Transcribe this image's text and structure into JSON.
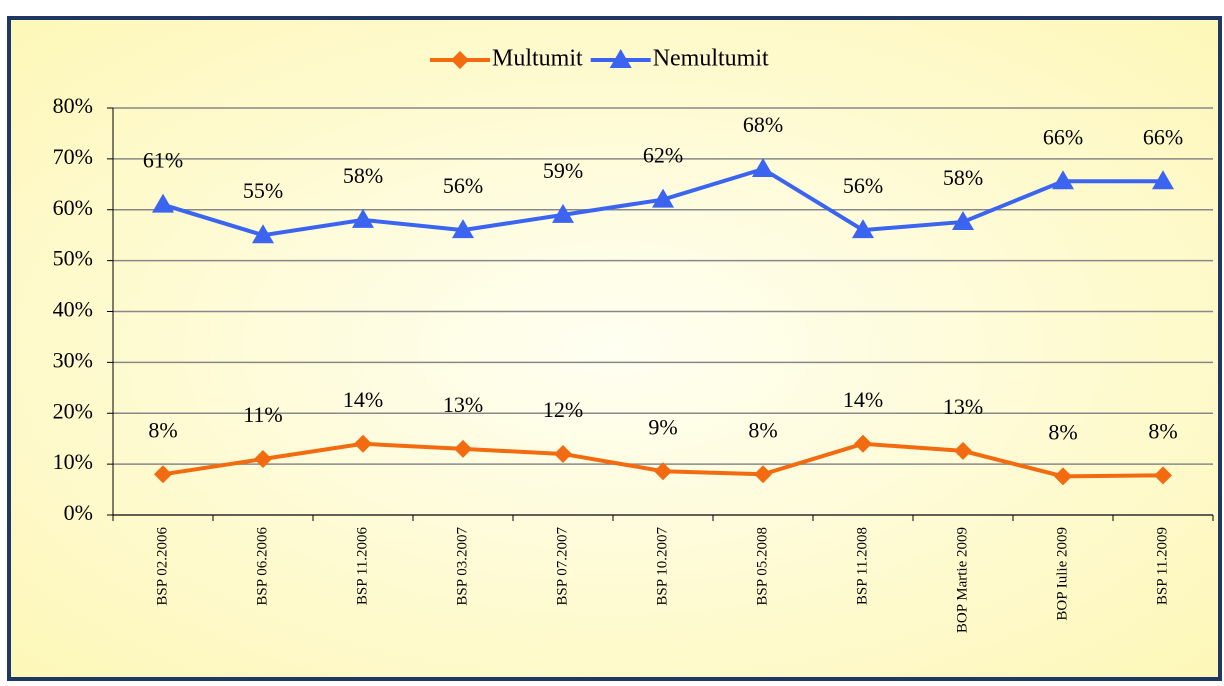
{
  "chart_data": {
    "type": "line",
    "categories": [
      "BSP 02.2006",
      "BSP 06.2006",
      "BSP 11.2006",
      "BSP 03.2007",
      "BSP 07.2007",
      "BSP 10.2007",
      "BSP 05.2008",
      "BSP 11.2008",
      "BOP Martie 2009",
      "BOP Iulie 2009",
      "BSP 11.2009"
    ],
    "series": [
      {
        "name": "Multumit",
        "color": "#f26b10",
        "marker": "diamond",
        "values": [
          8,
          11,
          14,
          13,
          12,
          8.6,
          8,
          14,
          12.6,
          7.6,
          7.8
        ],
        "value_labels": [
          "8%",
          "11%",
          "14%",
          "13%",
          "12%",
          "9%",
          "8%",
          "14%",
          "13%",
          "8%",
          "8%"
        ]
      },
      {
        "name": "Nemultumit",
        "color": "#3b64f0",
        "marker": "triangle",
        "values": [
          61,
          55,
          58,
          56,
          59,
          62,
          68,
          56,
          57.6,
          65.6,
          65.6
        ],
        "value_labels": [
          "61%",
          "55%",
          "58%",
          "56%",
          "59%",
          "62%",
          "68%",
          "56%",
          "58%",
          "66%",
          "66%"
        ]
      }
    ],
    "ylim": [
      0,
      80
    ],
    "yticks": [
      {
        "value": 0,
        "label": "0%"
      },
      {
        "value": 10,
        "label": "10%"
      },
      {
        "value": 20,
        "label": "20%"
      },
      {
        "value": 30,
        "label": "30%"
      },
      {
        "value": 40,
        "label": "40%"
      },
      {
        "value": 50,
        "label": "50%"
      },
      {
        "value": 60,
        "label": "60%"
      },
      {
        "value": 70,
        "label": "70%"
      },
      {
        "value": 80,
        "label": "80%"
      }
    ],
    "grid": true,
    "legend": "top"
  }
}
